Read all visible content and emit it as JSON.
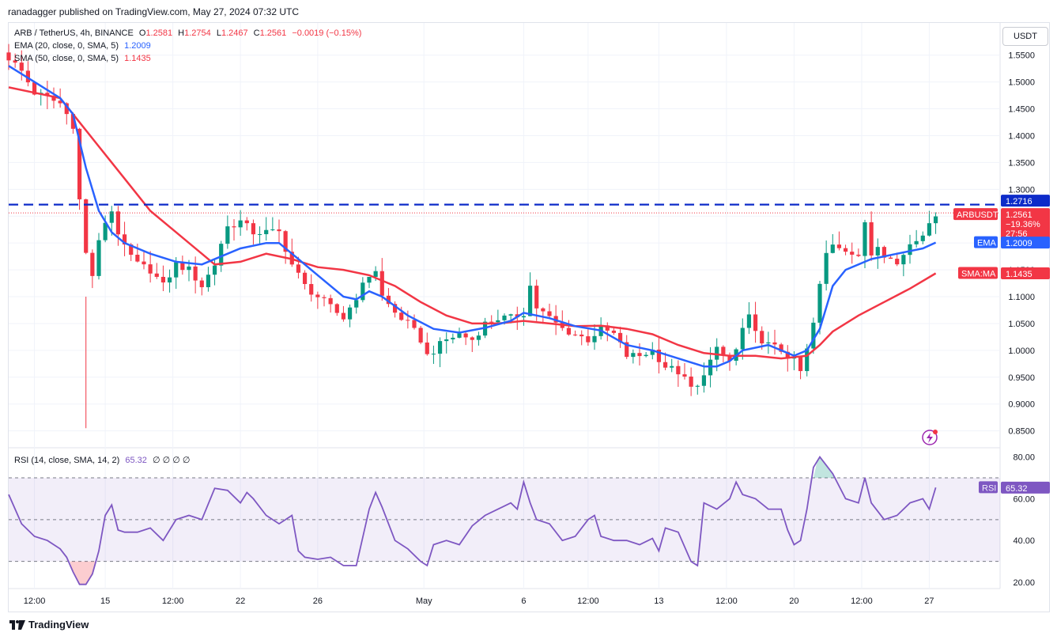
{
  "attribution": "ranadagger published on TradingView.com, May 27, 2024 07:32 UTC",
  "legend": {
    "symbol": "ARB / TetherUS, 4h, BINANCE",
    "open_label": "O",
    "open": "1.2581",
    "high_label": "H",
    "high": "1.2754",
    "low_label": "L",
    "low": "1.2467",
    "close_label": "C",
    "close": "1.2561",
    "change": "−0.0019 (−0.15%)",
    "ema_label": "EMA (20, close, 0, SMA, 5)",
    "ema_value": "1.2009",
    "sma_label": "SMA (50, close, 0, SMA, 5)",
    "sma_value": "1.1435",
    "rsi_label": "RSI (14, close, SMA, 14, 2)",
    "rsi_value": "65.32",
    "rsi_extra": "∅ ∅ ∅ ∅"
  },
  "currency_button": "USDT",
  "brand": "TradingView",
  "icons": {
    "alert": "lightning-alert-icon",
    "brand": "tradingview-logo-icon"
  },
  "colors": {
    "up": "#089981",
    "down": "#f23645",
    "ema": "#2962ff",
    "sma": "#f23645",
    "rsi": "#7e57c2",
    "resistance": "#0d2bc9"
  },
  "chart_data": {
    "type": "candlestick",
    "symbol": "ARBUSDT",
    "timeframe": "4h",
    "price_axis": {
      "ticks": [
        "1.5500",
        "1.5000",
        "1.4500",
        "1.4000",
        "1.3500",
        "1.3000",
        "1.2500",
        "1.2000",
        "1.1500",
        "1.1000",
        "1.0500",
        "1.0000",
        "0.9500",
        "0.9000",
        "0.8500"
      ],
      "range": [
        0.82,
        1.61
      ]
    },
    "time_axis": {
      "ticks": [
        {
          "label": "12:00",
          "t": 4
        },
        {
          "label": "15",
          "t": 15
        },
        {
          "label": "12:00",
          "t": 25.5
        },
        {
          "label": "22",
          "t": 36
        },
        {
          "label": "26",
          "t": 48
        },
        {
          "label": "May",
          "t": 64.5
        },
        {
          "label": "6",
          "t": 80
        },
        {
          "label": "12:00",
          "t": 90
        },
        {
          "label": "13",
          "t": 101
        },
        {
          "label": "12:00",
          "t": 111.5
        },
        {
          "label": "20",
          "t": 122
        },
        {
          "label": "12:00",
          "t": 132.5
        },
        {
          "label": "27",
          "t": 143
        }
      ],
      "range": [
        0,
        154
      ]
    },
    "resistance": {
      "value": 1.2716,
      "label": "1.2716"
    },
    "price_labels": [
      {
        "name": "ARBUSDT",
        "value": "1.2561",
        "change": "−19.36%",
        "countdown": "27:56"
      },
      {
        "name": "EMA",
        "value": "1.2009"
      },
      {
        "name": "SMA:MA",
        "value": "1.1435"
      }
    ],
    "price_anchors": [
      [
        0,
        1.545
      ],
      [
        2,
        1.52
      ],
      [
        4,
        1.48
      ],
      [
        6,
        1.47
      ],
      [
        8,
        1.46
      ],
      [
        10,
        1.42
      ],
      [
        11,
        1.28
      ],
      [
        12,
        1.18
      ],
      [
        13,
        1.14
      ],
      [
        14,
        1.2
      ],
      [
        15,
        1.24
      ],
      [
        16,
        1.26
      ],
      [
        17,
        1.22
      ],
      [
        18,
        1.19
      ],
      [
        20,
        1.16
      ],
      [
        22,
        1.15
      ],
      [
        24,
        1.12
      ],
      [
        26,
        1.16
      ],
      [
        28,
        1.15
      ],
      [
        30,
        1.12
      ],
      [
        32,
        1.16
      ],
      [
        33,
        1.2
      ],
      [
        34,
        1.23
      ],
      [
        36,
        1.24
      ],
      [
        38,
        1.22
      ],
      [
        40,
        1.22
      ],
      [
        42,
        1.22
      ],
      [
        44,
        1.16
      ],
      [
        46,
        1.12
      ],
      [
        48,
        1.1
      ],
      [
        50,
        1.08
      ],
      [
        52,
        1.06
      ],
      [
        54,
        1.1
      ],
      [
        56,
        1.14
      ],
      [
        57,
        1.15
      ],
      [
        58,
        1.1
      ],
      [
        60,
        1.07
      ],
      [
        62,
        1.05
      ],
      [
        64,
        1.02
      ],
      [
        65,
        0.99
      ],
      [
        66,
        1.0
      ],
      [
        68,
        1.02
      ],
      [
        70,
        1.03
      ],
      [
        72,
        1.02
      ],
      [
        74,
        1.05
      ],
      [
        76,
        1.06
      ],
      [
        78,
        1.06
      ],
      [
        80,
        1.07
      ],
      [
        81,
        1.12
      ],
      [
        82,
        1.08
      ],
      [
        84,
        1.06
      ],
      [
        86,
        1.04
      ],
      [
        88,
        1.03
      ],
      [
        90,
        1.02
      ],
      [
        92,
        1.04
      ],
      [
        94,
        1.03
      ],
      [
        96,
        0.99
      ],
      [
        98,
        0.99
      ],
      [
        100,
        1.0
      ],
      [
        102,
        0.97
      ],
      [
        104,
        0.96
      ],
      [
        106,
        0.93
      ],
      [
        107,
        0.93
      ],
      [
        108,
        0.96
      ],
      [
        110,
        1.0
      ],
      [
        112,
        0.98
      ],
      [
        113,
        1.0
      ],
      [
        114,
        1.04
      ],
      [
        115,
        1.06
      ],
      [
        116,
        1.03
      ],
      [
        118,
        1.01
      ],
      [
        120,
        1.0
      ],
      [
        122,
        0.98
      ],
      [
        123,
        0.96
      ],
      [
        124,
        1.0
      ],
      [
        125,
        1.05
      ],
      [
        126,
        1.12
      ],
      [
        127,
        1.18
      ],
      [
        128,
        1.2
      ],
      [
        130,
        1.19
      ],
      [
        132,
        1.17
      ],
      [
        133,
        1.24
      ],
      [
        134,
        1.18
      ],
      [
        135,
        1.2
      ],
      [
        136,
        1.18
      ],
      [
        138,
        1.16
      ],
      [
        140,
        1.2
      ],
      [
        142,
        1.22
      ],
      [
        143,
        1.23
      ],
      [
        144,
        1.2561
      ]
    ],
    "ema_anchors": [
      [
        0,
        1.53
      ],
      [
        4,
        1.5
      ],
      [
        8,
        1.47
      ],
      [
        10,
        1.44
      ],
      [
        12,
        1.34
      ],
      [
        14,
        1.26
      ],
      [
        16,
        1.22
      ],
      [
        18,
        1.2
      ],
      [
        22,
        1.18
      ],
      [
        26,
        1.165
      ],
      [
        30,
        1.16
      ],
      [
        34,
        1.18
      ],
      [
        36,
        1.19
      ],
      [
        40,
        1.2
      ],
      [
        42,
        1.2
      ],
      [
        44,
        1.18
      ],
      [
        48,
        1.14
      ],
      [
        52,
        1.1
      ],
      [
        54,
        1.095
      ],
      [
        56,
        1.11
      ],
      [
        58,
        1.1
      ],
      [
        62,
        1.065
      ],
      [
        66,
        1.04
      ],
      [
        70,
        1.033
      ],
      [
        74,
        1.042
      ],
      [
        78,
        1.055
      ],
      [
        80,
        1.07
      ],
      [
        84,
        1.06
      ],
      [
        88,
        1.045
      ],
      [
        92,
        1.037
      ],
      [
        96,
        1.01
      ],
      [
        100,
        1.0
      ],
      [
        104,
        0.985
      ],
      [
        108,
        0.97
      ],
      [
        110,
        0.97
      ],
      [
        112,
        0.98
      ],
      [
        114,
        1.0
      ],
      [
        118,
        1.01
      ],
      [
        122,
        0.99
      ],
      [
        124,
        1.0
      ],
      [
        126,
        1.04
      ],
      [
        128,
        1.12
      ],
      [
        130,
        1.15
      ],
      [
        134,
        1.17
      ],
      [
        138,
        1.18
      ],
      [
        142,
        1.19
      ],
      [
        144,
        1.2009
      ]
    ],
    "sma_anchors": [
      [
        0,
        1.49
      ],
      [
        4,
        1.48
      ],
      [
        8,
        1.47
      ],
      [
        10,
        1.44
      ],
      [
        14,
        1.38
      ],
      [
        18,
        1.32
      ],
      [
        22,
        1.26
      ],
      [
        26,
        1.22
      ],
      [
        30,
        1.18
      ],
      [
        32,
        1.16
      ],
      [
        36,
        1.165
      ],
      [
        40,
        1.18
      ],
      [
        44,
        1.17
      ],
      [
        48,
        1.155
      ],
      [
        52,
        1.15
      ],
      [
        56,
        1.14
      ],
      [
        60,
        1.12
      ],
      [
        64,
        1.09
      ],
      [
        68,
        1.065
      ],
      [
        72,
        1.05
      ],
      [
        76,
        1.05
      ],
      [
        80,
        1.055
      ],
      [
        84,
        1.05
      ],
      [
        88,
        1.045
      ],
      [
        92,
        1.046
      ],
      [
        96,
        1.04
      ],
      [
        100,
        1.03
      ],
      [
        104,
        1.01
      ],
      [
        108,
        0.995
      ],
      [
        112,
        0.99
      ],
      [
        116,
        0.99
      ],
      [
        120,
        0.985
      ],
      [
        124,
        0.99
      ],
      [
        126,
        1.01
      ],
      [
        128,
        1.035
      ],
      [
        132,
        1.065
      ],
      [
        136,
        1.09
      ],
      [
        140,
        1.115
      ],
      [
        144,
        1.1435
      ]
    ],
    "rsi": {
      "ticks": [
        "80.00",
        "60.00",
        "40.00",
        "20.00"
      ],
      "range": [
        17,
        84
      ],
      "bands": [
        30,
        50,
        70
      ],
      "current": "65.32",
      "anchors": [
        [
          0,
          62
        ],
        [
          2,
          48
        ],
        [
          4,
          42
        ],
        [
          6,
          40
        ],
        [
          8,
          36
        ],
        [
          9,
          32
        ],
        [
          10,
          25
        ],
        [
          11,
          19
        ],
        [
          12,
          19
        ],
        [
          13,
          24
        ],
        [
          14,
          35
        ],
        [
          15,
          52
        ],
        [
          16,
          57
        ],
        [
          17,
          45
        ],
        [
          18,
          44
        ],
        [
          20,
          44
        ],
        [
          22,
          46
        ],
        [
          24,
          40
        ],
        [
          26,
          50
        ],
        [
          28,
          52
        ],
        [
          30,
          50
        ],
        [
          32,
          65
        ],
        [
          34,
          64
        ],
        [
          36,
          58
        ],
        [
          37,
          63
        ],
        [
          38,
          60
        ],
        [
          40,
          52
        ],
        [
          42,
          48
        ],
        [
          44,
          52
        ],
        [
          45,
          35
        ],
        [
          46,
          32
        ],
        [
          48,
          31
        ],
        [
          50,
          32
        ],
        [
          52,
          28
        ],
        [
          54,
          28
        ],
        [
          56,
          55
        ],
        [
          57,
          63
        ],
        [
          58,
          56
        ],
        [
          60,
          40
        ],
        [
          62,
          36
        ],
        [
          64,
          30
        ],
        [
          65,
          28
        ],
        [
          66,
          38
        ],
        [
          68,
          40
        ],
        [
          70,
          38
        ],
        [
          72,
          47
        ],
        [
          74,
          52
        ],
        [
          76,
          55
        ],
        [
          78,
          58
        ],
        [
          79,
          55
        ],
        [
          80,
          68
        ],
        [
          81,
          58
        ],
        [
          82,
          50
        ],
        [
          84,
          48
        ],
        [
          86,
          40
        ],
        [
          88,
          42
        ],
        [
          90,
          50
        ],
        [
          91,
          52
        ],
        [
          92,
          42
        ],
        [
          94,
          40
        ],
        [
          96,
          40
        ],
        [
          98,
          38
        ],
        [
          100,
          41
        ],
        [
          101,
          35
        ],
        [
          102,
          46
        ],
        [
          104,
          44
        ],
        [
          106,
          30
        ],
        [
          107,
          28
        ],
        [
          108,
          58
        ],
        [
          110,
          55
        ],
        [
          112,
          60
        ],
        [
          113,
          68
        ],
        [
          114,
          62
        ],
        [
          116,
          60
        ],
        [
          118,
          55
        ],
        [
          120,
          55
        ],
        [
          121,
          45
        ],
        [
          122,
          38
        ],
        [
          123,
          40
        ],
        [
          124,
          55
        ],
        [
          125,
          75
        ],
        [
          126,
          80
        ],
        [
          127,
          76
        ],
        [
          128,
          72
        ],
        [
          130,
          60
        ],
        [
          132,
          58
        ],
        [
          133,
          70
        ],
        [
          134,
          58
        ],
        [
          136,
          50
        ],
        [
          138,
          52
        ],
        [
          140,
          58
        ],
        [
          142,
          60
        ],
        [
          143,
          55
        ],
        [
          144,
          65.32
        ]
      ]
    }
  }
}
